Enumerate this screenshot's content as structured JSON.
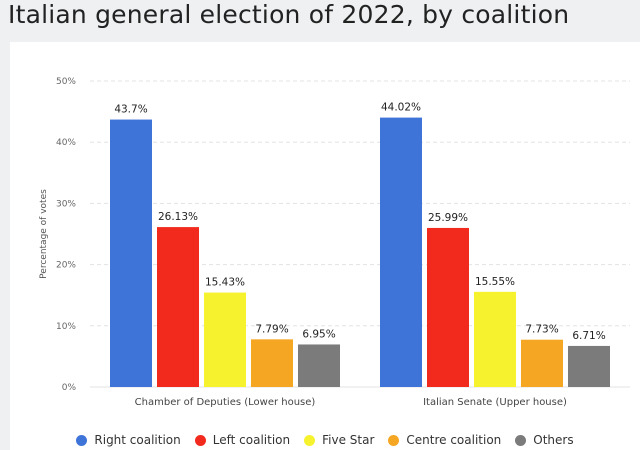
{
  "title": "Italian general election of 2022, by coalition",
  "chart_data": {
    "type": "bar",
    "ylabel": "Percentage of votes",
    "xlabel": "",
    "ylim": [
      0,
      50
    ],
    "yticks": [
      0,
      10,
      20,
      30,
      40,
      50
    ],
    "ytick_labels": [
      "0%",
      "10%",
      "20%",
      "30%",
      "40%",
      "50%"
    ],
    "grid": true,
    "legend_position": "bottom",
    "categories": [
      "Chamber of Deputies (Lower house)",
      "Italian Senate (Upper house)"
    ],
    "series": [
      {
        "name": "Right coalition",
        "color": "#3e74d8",
        "values": [
          43.7,
          44.02
        ],
        "labels": [
          "43.7%",
          "44.02%"
        ]
      },
      {
        "name": "Left coalition",
        "color": "#f12a1d",
        "values": [
          26.13,
          25.99
        ],
        "labels": [
          "26.13%",
          "25.99%"
        ]
      },
      {
        "name": "Five Star",
        "color": "#f7f22e",
        "values": [
          15.43,
          15.55
        ],
        "labels": [
          "15.43%",
          "15.55%"
        ]
      },
      {
        "name": "Centre coalition",
        "color": "#f5a623",
        "values": [
          7.79,
          7.73
        ],
        "labels": [
          "7.79%",
          "7.73%"
        ]
      },
      {
        "name": "Others",
        "color": "#7b7b7b",
        "values": [
          6.95,
          6.71
        ],
        "labels": [
          "6.95%",
          "6.71%"
        ]
      }
    ]
  }
}
